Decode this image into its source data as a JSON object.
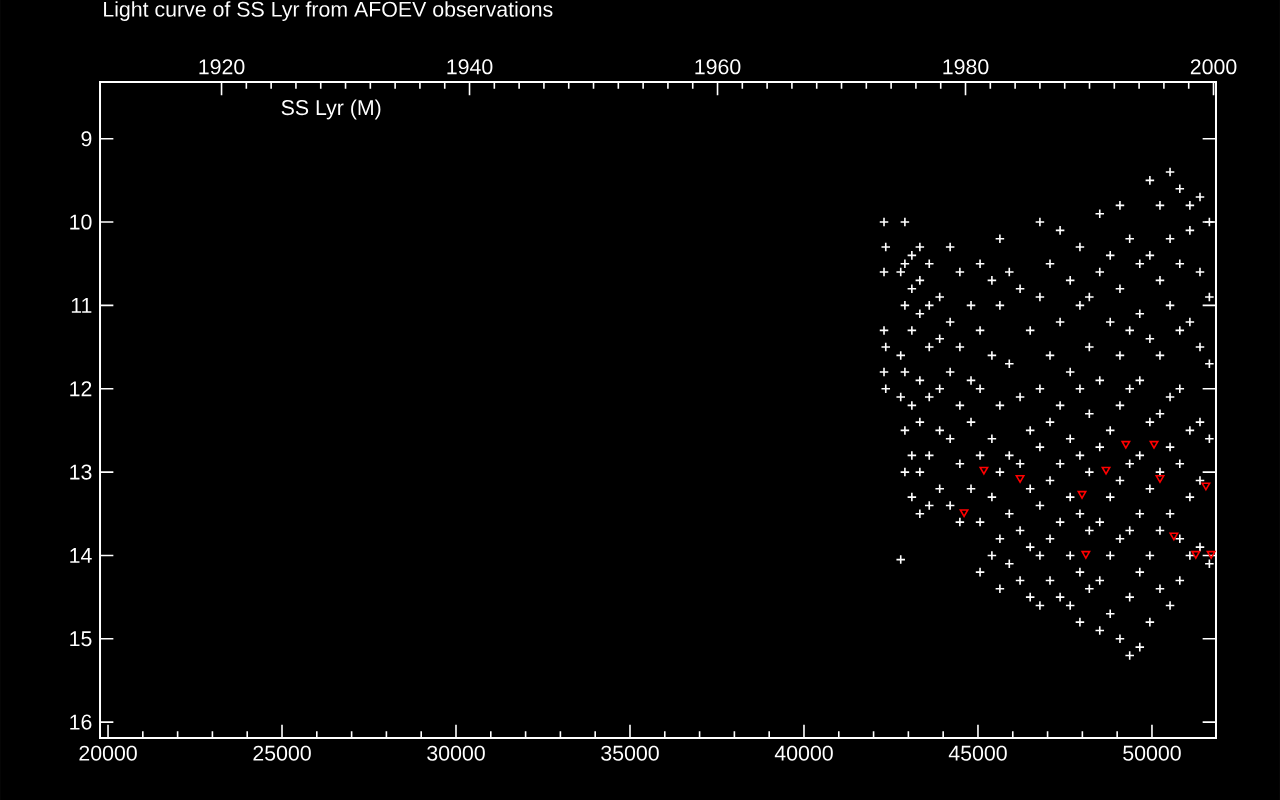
{
  "chart_data": {
    "type": "scatter",
    "title": "Light curve of SS Lyr from AFOEV observations",
    "annotations": [
      "SS Lyr (M)"
    ],
    "xlim": [
      19770,
      51840
    ],
    "xticks": [
      20000,
      25000,
      30000,
      35000,
      40000,
      45000,
      50000
    ],
    "x2lim": [
      1910.2,
      2000.2
    ],
    "x2ticks": [
      1920,
      1940,
      1960,
      1980,
      2000
    ],
    "ylim": [
      16.19,
      8.32
    ],
    "yticks": [
      9,
      10,
      11,
      12,
      13,
      14,
      15,
      16
    ],
    "grid": false,
    "series": [
      {
        "color": "#ffffff",
        "marker": "cross",
        "x": [
          42300,
          42300,
          42300,
          42300,
          42350,
          42350,
          42350,
          42780,
          42780,
          42780,
          42780,
          42900,
          42900,
          42900,
          42900,
          42900,
          42900,
          43100,
          43100,
          43100,
          43100,
          43100,
          43100,
          43330,
          43330,
          43330,
          43330,
          43330,
          43330,
          43330,
          43600,
          43600,
          43600,
          43600,
          43600,
          43600,
          43900,
          43900,
          43900,
          43900,
          43900,
          44200,
          44200,
          44200,
          44200,
          44200,
          44480,
          44480,
          44480,
          44480,
          44480,
          44800,
          44800,
          44800,
          44800,
          45060,
          45060,
          45060,
          45060,
          45060,
          45060,
          45400,
          45400,
          45400,
          45400,
          45400,
          45630,
          45630,
          45630,
          45630,
          45630,
          45630,
          45900,
          45900,
          45900,
          45900,
          45900,
          46210,
          46210,
          46210,
          46210,
          46210,
          46500,
          46500,
          46500,
          46500,
          46500,
          46780,
          46780,
          46780,
          46780,
          46780,
          46780,
          46780,
          47070,
          47070,
          47070,
          47070,
          47070,
          47070,
          47360,
          47360,
          47360,
          47360,
          47360,
          47360,
          47650,
          47650,
          47650,
          47650,
          47650,
          47650,
          47930,
          47930,
          47930,
          47930,
          47930,
          47930,
          47930,
          48200,
          48200,
          48200,
          48200,
          48200,
          48200,
          48500,
          48500,
          48500,
          48500,
          48500,
          48500,
          48500,
          48800,
          48800,
          48800,
          48800,
          48800,
          48800,
          49080,
          49080,
          49080,
          49080,
          49080,
          49080,
          49080,
          49360,
          49360,
          49360,
          49360,
          49360,
          49360,
          49360,
          49650,
          49650,
          49650,
          49650,
          49650,
          49650,
          49650,
          49940,
          49940,
          49940,
          49940,
          49940,
          49940,
          49940,
          50230,
          50230,
          50230,
          50230,
          50230,
          50230,
          50230,
          50520,
          50520,
          50520,
          50520,
          50520,
          50520,
          50520,
          50800,
          50800,
          50800,
          50800,
          50800,
          50800,
          50800,
          51090,
          51090,
          51090,
          51090,
          51090,
          51090,
          51380,
          51380,
          51380,
          51380,
          51380,
          51380,
          51650,
          51650,
          51650,
          51650,
          51650
        ],
        "values": [
          10.0,
          10.6,
          11.3,
          11.8,
          10.3,
          11.5,
          12.0,
          10.6,
          11.6,
          12.1,
          14.05,
          10.0,
          10.5,
          11.0,
          11.8,
          12.5,
          13.0,
          10.4,
          10.8,
          11.3,
          12.2,
          12.8,
          13.3,
          10.3,
          10.7,
          11.1,
          11.9,
          12.4,
          13.0,
          13.5,
          10.5,
          11.0,
          11.5,
          12.1,
          12.8,
          13.4,
          10.9,
          11.4,
          12.0,
          12.5,
          13.2,
          10.3,
          11.2,
          11.8,
          12.6,
          13.4,
          10.6,
          11.5,
          12.2,
          12.9,
          13.6,
          11.0,
          11.9,
          12.4,
          13.2,
          10.5,
          11.3,
          12.0,
          12.8,
          13.6,
          14.2,
          10.7,
          11.6,
          12.6,
          13.3,
          14.0,
          10.2,
          11.0,
          12.2,
          13.0,
          13.8,
          14.4,
          10.6,
          11.7,
          12.8,
          13.5,
          14.1,
          10.8,
          12.1,
          12.9,
          13.7,
          14.3,
          11.3,
          12.5,
          13.2,
          13.9,
          14.5,
          10.0,
          10.9,
          12.0,
          12.7,
          13.4,
          14.0,
          14.6,
          10.5,
          11.6,
          12.4,
          13.1,
          13.8,
          14.3,
          10.1,
          11.2,
          12.2,
          12.9,
          13.6,
          14.5,
          10.7,
          11.8,
          12.6,
          13.3,
          14.0,
          14.6,
          10.3,
          11.0,
          12.0,
          12.8,
          13.5,
          14.2,
          14.8,
          10.9,
          11.5,
          12.3,
          13.0,
          13.7,
          14.4,
          9.9,
          10.6,
          11.9,
          12.7,
          13.6,
          14.3,
          14.9,
          10.4,
          11.2,
          12.5,
          13.3,
          14.0,
          14.7,
          9.8,
          10.8,
          11.6,
          12.2,
          13.1,
          13.8,
          15.0,
          10.2,
          11.3,
          12.0,
          12.9,
          13.7,
          14.5,
          15.2,
          10.5,
          11.1,
          11.9,
          12.8,
          13.5,
          14.2,
          15.1,
          9.5,
          10.4,
          11.4,
          12.4,
          13.2,
          14.0,
          14.8,
          9.8,
          10.7,
          11.6,
          12.3,
          13.0,
          13.7,
          14.4,
          9.4,
          10.2,
          11.0,
          12.1,
          12.7,
          13.5,
          14.6,
          9.6,
          10.5,
          11.3,
          12.0,
          12.9,
          13.8,
          14.3,
          9.8,
          10.1,
          11.2,
          12.5,
          13.3,
          14.0,
          9.7,
          10.6,
          11.5,
          12.4,
          13.1,
          13.9,
          10.0,
          10.9,
          11.7,
          12.6,
          14.1
        ]
      },
      {
        "color": "#ff0000",
        "marker": "triangle",
        "x": [
          44600,
          45170,
          46210,
          47990,
          48100,
          48680,
          49250,
          50060,
          50230,
          50630,
          51260,
          51550,
          51700
        ],
        "values": [
          13.48,
          12.97,
          13.07,
          13.26,
          13.98,
          12.97,
          12.66,
          12.66,
          13.07,
          13.76,
          13.98,
          13.16,
          13.98
        ]
      }
    ]
  }
}
